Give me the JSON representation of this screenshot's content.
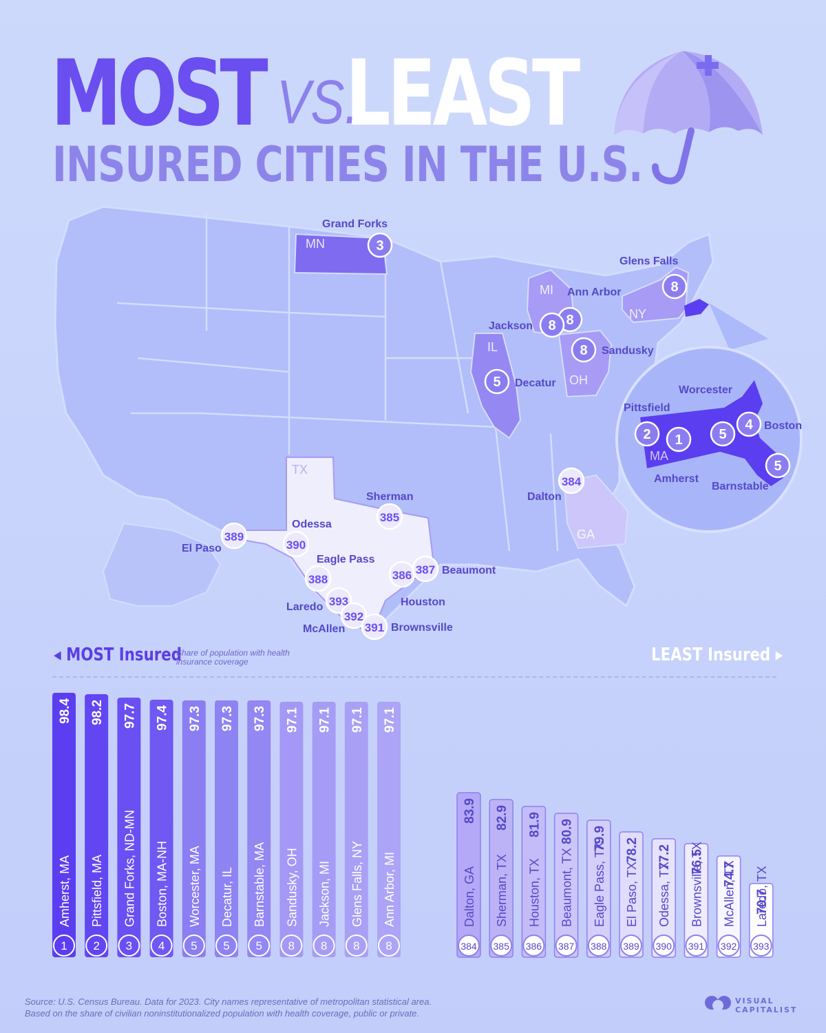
{
  "title": {
    "most": "MOST",
    "vs": "VS.",
    "least": "LEAST",
    "subtitle": "INSURED CITIES IN THE U.S."
  },
  "colors": {
    "most_dark": "#5b3ef0",
    "most_mid": "#8d7ff0",
    "least_light": "#ffffff",
    "least_mid": "#b5abf5",
    "background": "#c8d4fb"
  },
  "map": {
    "state_labels": [
      "MN",
      "MI",
      "NY",
      "IL",
      "OH",
      "TX",
      "GA",
      "MA"
    ],
    "markers": [
      {
        "city": "Grand Forks",
        "rank": "3"
      },
      {
        "city": "Glens Falls",
        "rank": "8"
      },
      {
        "city": "Ann Arbor",
        "rank": "8"
      },
      {
        "city": "Jackson",
        "rank": "8"
      },
      {
        "city": "Sandusky",
        "rank": "8"
      },
      {
        "city": "Decatur",
        "rank": "5"
      },
      {
        "city": "Pittsfield",
        "rank": "2"
      },
      {
        "city": "Amherst",
        "rank": "1"
      },
      {
        "city": "Worcester",
        "rank": "5"
      },
      {
        "city": "Boston",
        "rank": "4"
      },
      {
        "city": "Barnstable",
        "rank": "5"
      },
      {
        "city": "Dalton",
        "rank": "384"
      },
      {
        "city": "Sherman",
        "rank": "385"
      },
      {
        "city": "Odessa",
        "rank": "390"
      },
      {
        "city": "El Paso",
        "rank": "389"
      },
      {
        "city": "Eagle Pass",
        "rank": "388"
      },
      {
        "city": "Houston",
        "rank": "386"
      },
      {
        "city": "Beaumont",
        "rank": "387"
      },
      {
        "city": "Laredo",
        "rank": "393"
      },
      {
        "city": "McAllen",
        "rank": "392"
      },
      {
        "city": "Brownsville",
        "rank": "391"
      }
    ]
  },
  "sections": {
    "most_label": "MOST Insured",
    "least_label": "LEAST Insured",
    "legend_note": "Share of population with health insurance coverage"
  },
  "chart_data": [
    {
      "type": "bar",
      "title": "MOST Insured",
      "categories": [
        "Amherst, MA",
        "Pittsfield, MA",
        "Grand Forks, ND-MN",
        "Boston, MA-NH",
        "Worcester, MA",
        "Decatur, IL",
        "Barnstable, MA",
        "Sandusky, OH",
        "Jackson, MI",
        "Glens Falls, NY",
        "Ann Arbor, MI"
      ],
      "values": [
        98.4,
        98.2,
        97.7,
        97.4,
        97.3,
        97.3,
        97.3,
        97.1,
        97.1,
        97.1,
        97.1
      ],
      "ranks": [
        "1",
        "2",
        "3",
        "4",
        "5",
        "5",
        "5",
        "8",
        "8",
        "8",
        "8"
      ]
    },
    {
      "type": "bar",
      "title": "LEAST Insured",
      "categories": [
        "Dalton, GA",
        "Sherman, TX",
        "Houston, TX",
        "Beaumont, TX",
        "Eagle Pass, TX",
        "El Paso, TX",
        "Odessa, TX",
        "Brownsville, TX",
        "McAllen, TX",
        "Laredo, TX"
      ],
      "values": [
        83.9,
        82.9,
        81.9,
        80.9,
        79.9,
        78.2,
        77.2,
        76.5,
        74.7,
        70.7
      ],
      "ranks": [
        "384",
        "385",
        "386",
        "387",
        "388",
        "389",
        "390",
        "391",
        "392",
        "393"
      ]
    }
  ],
  "source": {
    "line1": "Source: U.S. Census Bureau. Data for 2023. City names representative of metropolitan statistical area.",
    "line2": "Based on the share of civilian noninstitutionalized population with health coverage, public or private."
  },
  "brand": {
    "line1": "VISUAL",
    "line2": "CAPITALIST"
  }
}
